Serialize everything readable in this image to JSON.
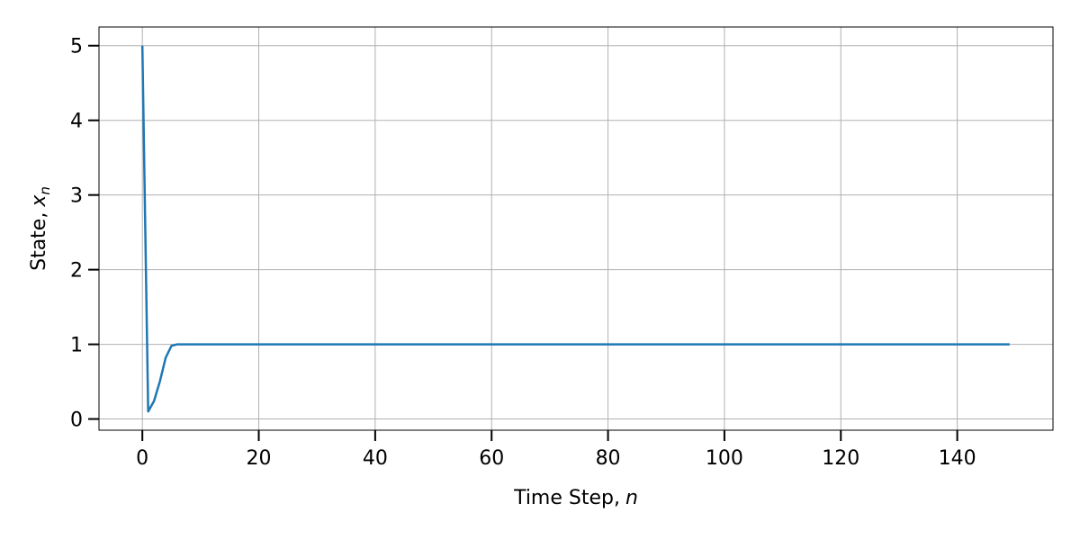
{
  "chart_data": {
    "type": "line",
    "xlabel": "Time Step,",
    "xlabel_var": "n",
    "ylabel": "State,",
    "ylabel_var": "x",
    "ylabel_sub": "n",
    "xlim": [
      -7.45,
      156.45
    ],
    "ylim": [
      -0.15,
      5.25
    ],
    "xticks": [
      0,
      20,
      40,
      60,
      80,
      100,
      120,
      140
    ],
    "yticks": [
      0,
      1,
      2,
      3,
      4,
      5
    ],
    "grid": true,
    "series": [
      {
        "color": "#1f77b4",
        "x_start": 0,
        "x_end": 149,
        "leading_values": [
          5.0,
          0.1,
          0.24,
          0.5,
          0.82,
          0.98,
          1.0
        ],
        "steady_value": 1.0
      }
    ]
  },
  "colors": {
    "line": "#1f77b4",
    "grid": "#b0b0b0",
    "axis": "#000000"
  }
}
